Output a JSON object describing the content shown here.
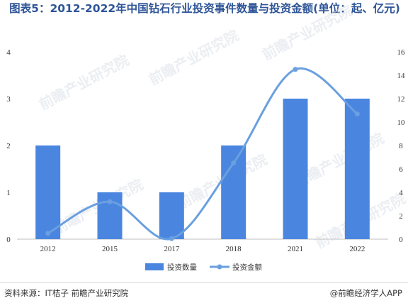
{
  "title": "图表5：2012-2022年中国钻石行业投资事件数量与投资金额(单位：起、亿元)",
  "source": "资料来源：IT桔子 前瞻产业研究院",
  "brand": "@前瞻经济学人APP",
  "watermark": "前瞻产业研究院",
  "colors": {
    "bar": "#4a86e0",
    "line": "#6a9fe0",
    "title": "#2f5597"
  },
  "chart_data": {
    "type": "bar",
    "title": "图表5：2012-2022年中国钻石行业投资事件数量与投资金额(单位：起、亿元)",
    "categories": [
      "2012",
      "2015",
      "2017",
      "2018",
      "2021",
      "2022"
    ],
    "series": [
      {
        "name": "投资数量",
        "type": "bar",
        "axis": "left",
        "values": [
          2,
          1,
          1,
          2,
          3,
          3
        ]
      },
      {
        "name": "投资金额",
        "type": "line",
        "axis": "right",
        "smooth": true,
        "values": [
          0.5,
          3.2,
          0.05,
          6.5,
          14.5,
          10.7
        ]
      }
    ],
    "y_left": {
      "range": [
        0,
        4
      ],
      "ticks": [
        "0",
        "1",
        "2",
        "3",
        "4"
      ]
    },
    "y_right": {
      "range": [
        0,
        16
      ],
      "ticks": [
        "0",
        "2",
        "4",
        "6",
        "8",
        "10",
        "12",
        "14",
        "16"
      ]
    },
    "grid": false,
    "legend_position": "bottom"
  }
}
